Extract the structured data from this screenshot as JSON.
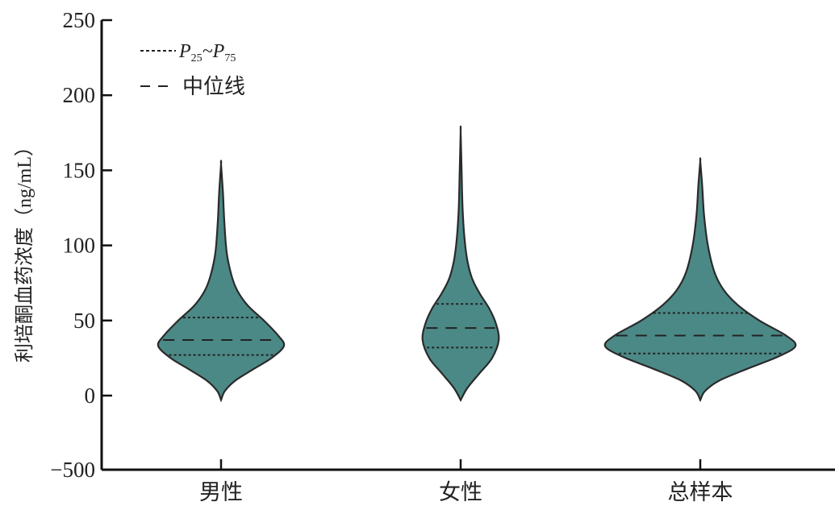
{
  "chart_data": {
    "type": "violin",
    "title": "",
    "xlabel": "",
    "ylabel": "利培酮血药浓度（ng/mL）",
    "yticks": [
      250,
      200,
      150,
      100,
      50,
      0,
      -500
    ],
    "ytick_labels": [
      "250",
      "200",
      "150",
      "100",
      "50",
      "0",
      "−500"
    ],
    "ylim": [
      -500,
      250
    ],
    "y_axis_break": true,
    "fill_color": "#4b8986",
    "legend": {
      "placement": "top-left",
      "entries": [
        {
          "style": "dotted",
          "label_main": "P",
          "sub1": "25",
          "sep": "~P",
          "sub2": "75"
        },
        {
          "style": "dashed",
          "label": "中位线"
        }
      ]
    },
    "categories": [
      "男性",
      "女性",
      "总样本"
    ],
    "series": [
      {
        "category": "男性",
        "min": -3,
        "max": 154,
        "p25": 27,
        "median": 37,
        "p75": 52,
        "density": [
          [
            -3,
            0
          ],
          [
            3,
            0.04
          ],
          [
            10,
            0.15
          ],
          [
            18,
            0.35
          ],
          [
            25,
            0.53
          ],
          [
            33,
            0.66
          ],
          [
            40,
            0.6
          ],
          [
            50,
            0.45
          ],
          [
            60,
            0.28
          ],
          [
            70,
            0.17
          ],
          [
            80,
            0.11
          ],
          [
            95,
            0.06
          ],
          [
            115,
            0.035
          ],
          [
            135,
            0.02
          ],
          [
            154,
            0
          ]
        ]
      },
      {
        "category": "女性",
        "min": -3,
        "max": 176,
        "p25": 32,
        "median": 45,
        "p75": 61,
        "density": [
          [
            -3,
            0
          ],
          [
            5,
            0.07
          ],
          [
            15,
            0.2
          ],
          [
            25,
            0.33
          ],
          [
            37,
            0.4
          ],
          [
            48,
            0.37
          ],
          [
            58,
            0.3
          ],
          [
            68,
            0.2
          ],
          [
            78,
            0.12
          ],
          [
            90,
            0.07
          ],
          [
            105,
            0.04
          ],
          [
            125,
            0.02
          ],
          [
            150,
            0.01
          ],
          [
            176,
            0
          ]
        ]
      },
      {
        "category": "总样本",
        "min": -3,
        "max": 156,
        "p25": 28,
        "median": 40,
        "p75": 55,
        "density": [
          [
            -3,
            0
          ],
          [
            3,
            0.05
          ],
          [
            10,
            0.2
          ],
          [
            18,
            0.5
          ],
          [
            26,
            0.82
          ],
          [
            33,
            1.0
          ],
          [
            40,
            0.9
          ],
          [
            50,
            0.62
          ],
          [
            60,
            0.4
          ],
          [
            70,
            0.25
          ],
          [
            82,
            0.15
          ],
          [
            100,
            0.08
          ],
          [
            120,
            0.04
          ],
          [
            140,
            0.02
          ],
          [
            156,
            0
          ]
        ]
      }
    ]
  }
}
